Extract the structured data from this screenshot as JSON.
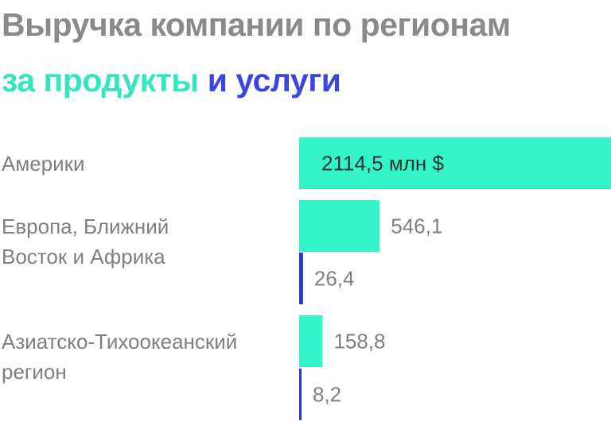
{
  "title": "Выручка компании по регионам",
  "subtitle": {
    "products_text": "за продукты",
    "services_text": "и услуги"
  },
  "colors": {
    "products": "#33f5c8",
    "services": "#2e35d6",
    "text": "#7f7f7f",
    "title": "#8a8a8a"
  },
  "chart_data": {
    "type": "bar",
    "orientation": "horizontal",
    "unit": "млн $",
    "categories": [
      "Америки",
      "Европа, Ближний Восток и Африка",
      "Азиатско-Тихоокеанский регион"
    ],
    "series": [
      {
        "name": "за продукты",
        "values": [
          2114.5,
          546.1,
          158.8
        ]
      },
      {
        "name": "и услуги",
        "values": [
          null,
          26.4,
          8.2
        ]
      }
    ],
    "value_labels": {
      "products": [
        "2114,5 млн $",
        "546,1",
        "158,8"
      ],
      "services": [
        null,
        "26,4",
        "8,2"
      ]
    },
    "label_lines": [
      [
        "Америки"
      ],
      [
        "Европа, Ближний",
        "Восток и Африка"
      ],
      [
        "Азиатско-Тихоокеанский",
        "регион"
      ]
    ],
    "xlim": [
      0,
      2114.5
    ]
  }
}
